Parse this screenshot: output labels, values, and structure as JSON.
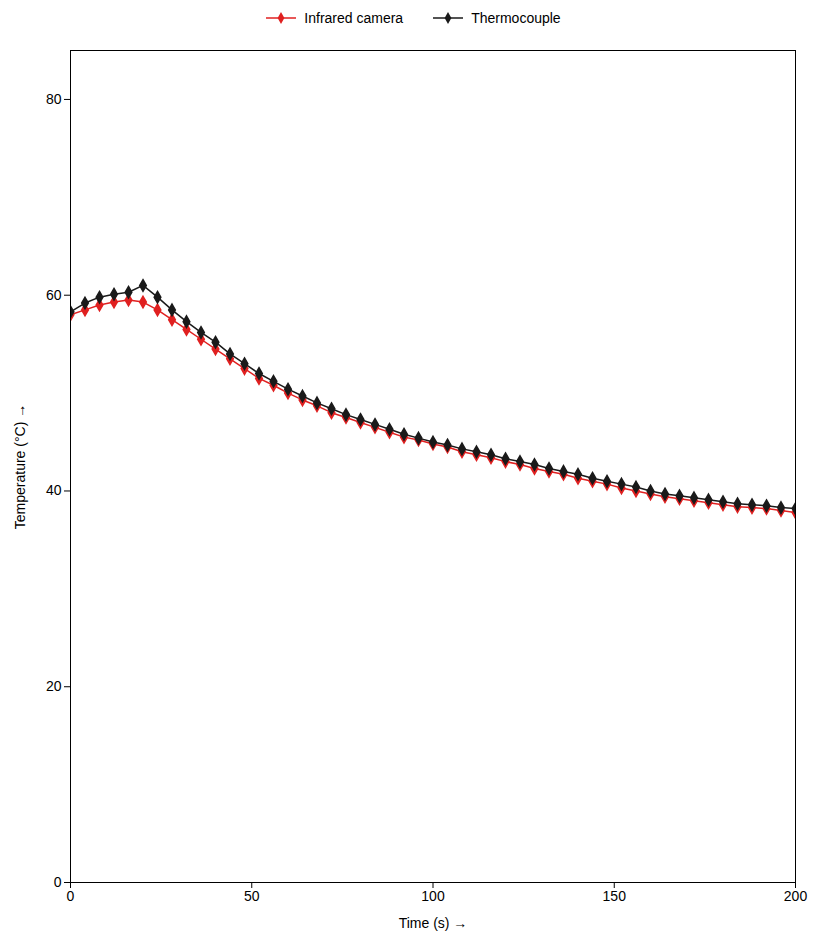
{
  "chart_data": {
    "type": "line",
    "xlabel": "Time (s)",
    "ylabel": "Temperature (°C)",
    "x": [
      0,
      4,
      8,
      12,
      16,
      20,
      24,
      28,
      32,
      36,
      40,
      44,
      48,
      52,
      56,
      60,
      64,
      68,
      72,
      76,
      80,
      84,
      88,
      92,
      96,
      100,
      104,
      108,
      112,
      116,
      120,
      124,
      128,
      132,
      136,
      140,
      144,
      148,
      152,
      156,
      160,
      164,
      168,
      172,
      176,
      180,
      184,
      188,
      192,
      196,
      200
    ],
    "series": [
      {
        "name": "Infrared camera",
        "color": "#e02020",
        "marker": "diamond",
        "values": [
          58.0,
          58.5,
          59.0,
          59.3,
          59.5,
          59.3,
          58.5,
          57.5,
          56.5,
          55.5,
          54.5,
          53.5,
          52.5,
          51.5,
          50.8,
          50.0,
          49.3,
          48.7,
          48.0,
          47.5,
          47.0,
          46.5,
          46.0,
          45.5,
          45.2,
          44.8,
          44.5,
          44.0,
          43.7,
          43.4,
          43.0,
          42.7,
          42.3,
          42.0,
          41.7,
          41.3,
          41.0,
          40.7,
          40.3,
          40.0,
          39.7,
          39.4,
          39.2,
          39.0,
          38.8,
          38.6,
          38.4,
          38.3,
          38.2,
          38.0,
          37.8
        ]
      },
      {
        "name": "Thermocouple",
        "color": "#1a1a1a",
        "marker": "diamond",
        "values": [
          58.3,
          59.2,
          59.8,
          60.1,
          60.3,
          61.0,
          59.8,
          58.5,
          57.3,
          56.2,
          55.2,
          54.0,
          53.0,
          52.0,
          51.2,
          50.4,
          49.7,
          49.0,
          48.4,
          47.8,
          47.3,
          46.8,
          46.3,
          45.8,
          45.4,
          45.0,
          44.7,
          44.3,
          44.0,
          43.7,
          43.3,
          43.0,
          42.7,
          42.3,
          42.0,
          41.7,
          41.3,
          41.0,
          40.7,
          40.4,
          40.0,
          39.7,
          39.5,
          39.3,
          39.1,
          38.9,
          38.7,
          38.6,
          38.5,
          38.3,
          38.2
        ]
      }
    ],
    "xlim": [
      0,
      200
    ],
    "ylim": [
      0,
      85
    ],
    "xticks": [
      0,
      50,
      100,
      150,
      200
    ],
    "yticks": [
      0,
      20,
      40,
      60,
      80
    ],
    "grid": false,
    "legend": "top"
  }
}
